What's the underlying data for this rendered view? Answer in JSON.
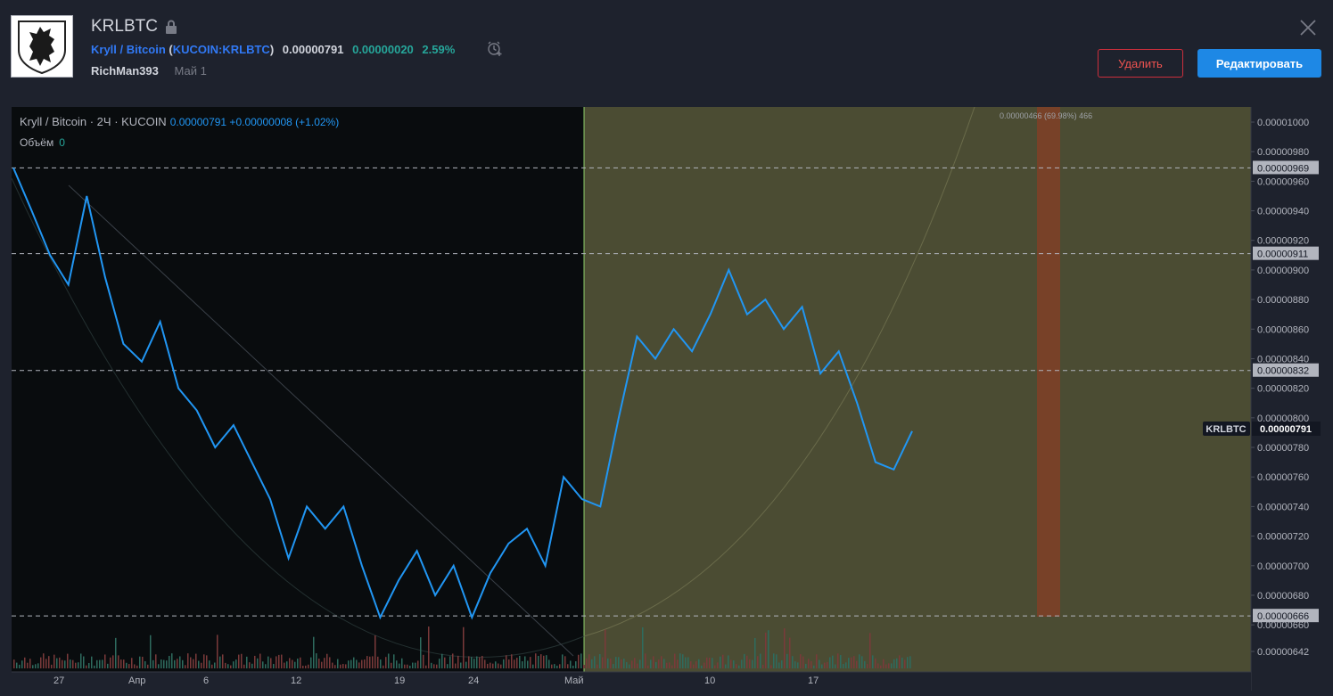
{
  "header": {
    "title": "KRLBTC",
    "pair_name": "Kryll / Bitcoin",
    "exchange_symbol": "KUCOIN:KRLBTC",
    "price": "0.00000791",
    "change": "0.00000020",
    "change_pct": "2.59%",
    "author": "RichMan393",
    "date": "Май 1"
  },
  "buttons": {
    "delete": "Удалить",
    "edit": "Редактировать"
  },
  "legend": {
    "main": "Kryll / Bitcoin · 2Ч · KUCOIN",
    "values": "0.00000791  +0.00000008 (+1.02%)",
    "volume_label": "Объём",
    "volume_value": "0"
  },
  "chart_data": {
    "type": "line",
    "symbol": "KRLBTC",
    "interval": "2Ч",
    "last_price": "0.00000791",
    "ylim": [
      6.32e-06,
      1.004e-05
    ],
    "y_ticks": [
      "0.00001000",
      "0.00000980",
      "0.00000960",
      "0.00000940",
      "0.00000920",
      "0.00000900",
      "0.00000880",
      "0.00000860",
      "0.00000840",
      "0.00000820",
      "0.00000800",
      "0.00000780",
      "0.00000760",
      "0.00000740",
      "0.00000720",
      "0.00000700",
      "0.00000680",
      "0.00000660",
      "0.00000642"
    ],
    "x_ticks": [
      "27",
      "Апр",
      "6",
      "12",
      "19",
      "24",
      "Май",
      "10",
      "17"
    ],
    "price_levels": [
      "0.00000969",
      "0.00000911",
      "0.00000832",
      "0.00000666"
    ],
    "measure_label": "0.00000466 (69.98%) 466",
    "series": [
      {
        "values": [
          9.69e-06,
          9.4e-06,
          9.1e-06,
          8.9e-06,
          9.5e-06,
          8.95e-06,
          8.5e-06,
          8.38e-06,
          8.65e-06,
          8.2e-06,
          8.05e-06,
          7.8e-06,
          7.95e-06,
          7.7e-06,
          7.45e-06,
          7.05e-06,
          7.4e-06,
          7.25e-06,
          7.4e-06,
          7e-06,
          6.65e-06,
          6.9e-06,
          7.1e-06,
          6.8e-06,
          7e-06,
          6.65e-06,
          6.95e-06,
          7.15e-06,
          7.25e-06,
          7e-06,
          7.6e-06,
          7.45e-06,
          7.4e-06,
          8e-06,
          8.55e-06,
          8.4e-06,
          8.6e-06,
          8.45e-06,
          8.7e-06,
          9e-06,
          8.7e-06,
          8.8e-06,
          8.6e-06,
          8.75e-06,
          8.3e-06,
          8.45e-06,
          8.1e-06,
          7.7e-06,
          7.65e-06,
          7.91e-06
        ]
      }
    ]
  }
}
